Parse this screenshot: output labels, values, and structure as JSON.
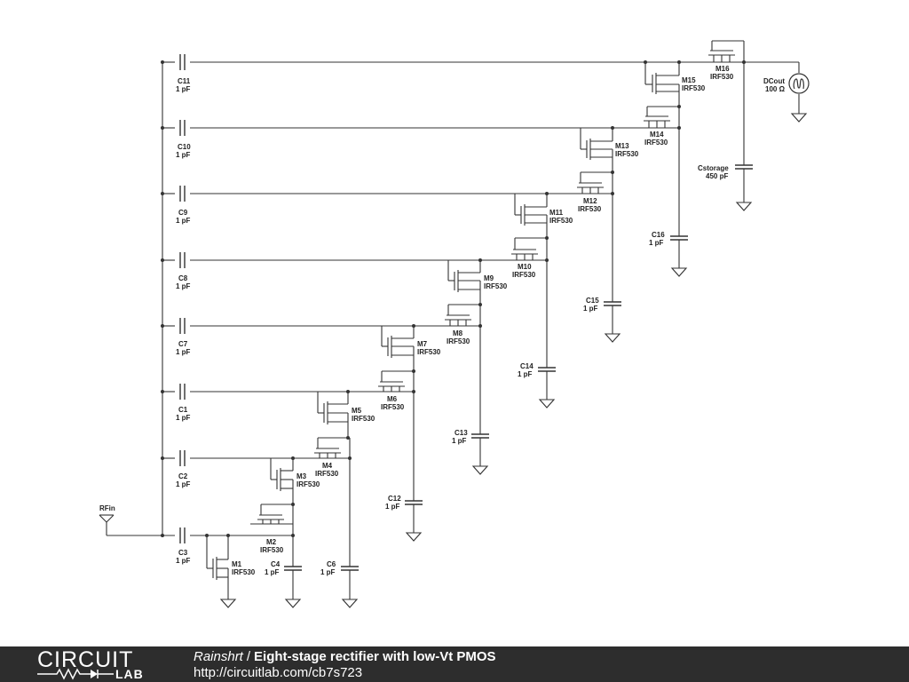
{
  "labels": {
    "rfin": "RFin",
    "dcout": "DCout",
    "dcout_value": "100 Ω",
    "cstorage": "Cstorage",
    "cstorage_value": "450 pF",
    "c11": "C11",
    "c10": "C10",
    "c9": "C9",
    "c8": "C8",
    "c7": "C7",
    "c1": "C1",
    "c2": "C2",
    "c3": "C3",
    "c4": "C4",
    "c6": "C6",
    "c12": "C12",
    "c13": "C13",
    "c14": "C14",
    "c15": "C15",
    "c16": "C16",
    "m1": "M1",
    "m2": "M2",
    "m3": "M3",
    "m4": "M4",
    "m5": "M5",
    "m6": "M6",
    "m7": "M7",
    "m8": "M8",
    "m9": "M9",
    "m10": "M10",
    "m11": "M11",
    "m12": "M12",
    "m13": "M13",
    "m14": "M14",
    "m15": "M15",
    "m16": "M16",
    "cap_value": "1 pF",
    "mosfet_model": "IRF530"
  },
  "footer": {
    "logo_top": "CIRCUIT",
    "logo_bottom": "LAB",
    "author": "Rainshrt",
    "separator": "/",
    "title": "Eight-stage rectifier with low-Vt PMOS",
    "url": "http://circuitlab.com/cb7s723"
  },
  "colors": {
    "wire": "#333333",
    "footer_bg": "#2d2d2d",
    "footer_text": "#ffffff"
  }
}
